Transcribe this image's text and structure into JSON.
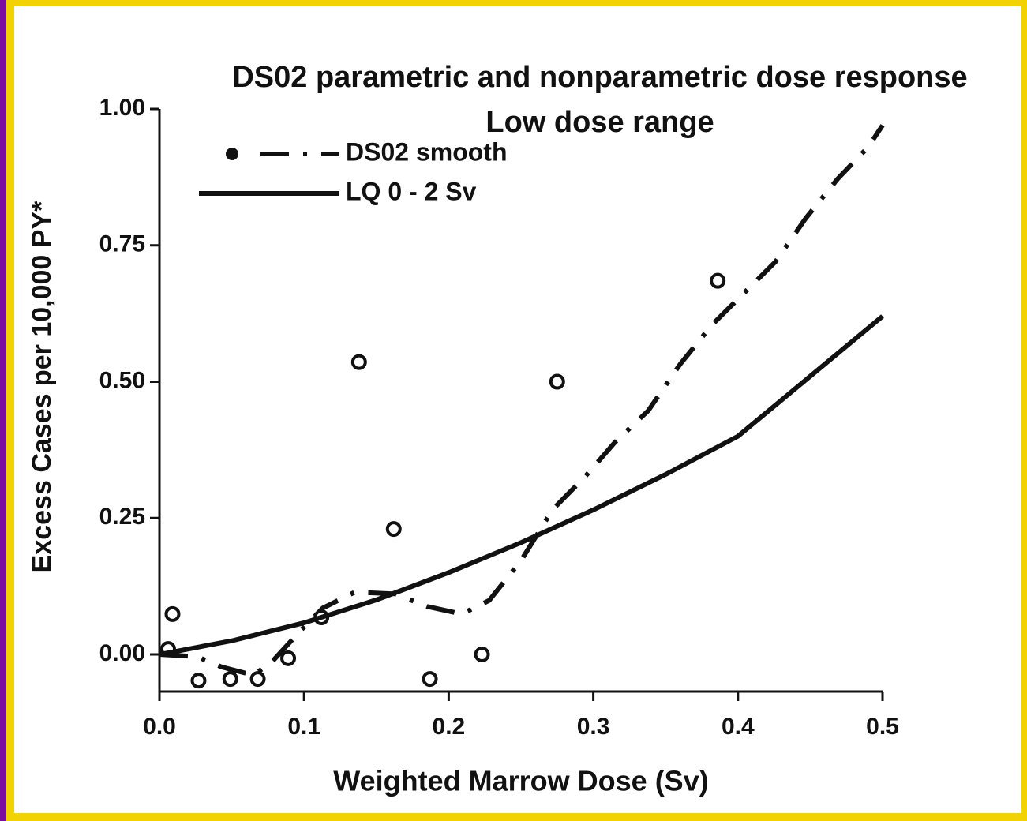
{
  "chart_data": {
    "type": "line",
    "title": "DS02 parametric and nonparametric dose response",
    "subtitle": "Low dose range",
    "x_label": "Weighted Marrow Dose (Sv)",
    "y_label": "Excess Cases per 10,000 PY*",
    "xlim": [
      0,
      0.5
    ],
    "ylim": [
      -0.068,
      1.0
    ],
    "xticks": [
      {
        "value": 0,
        "label": "0.0"
      },
      0.1,
      0.2,
      0.3,
      0.4,
      0.5
    ],
    "yticks": [
      {
        "value": 0,
        "label": "0.00"
      },
      {
        "value": 0.25,
        "label": "0.25"
      },
      {
        "value": 0.5,
        "label": "0.50"
      },
      {
        "value": 0.75,
        "label": "0.75"
      },
      {
        "value": 1.0,
        "label": "1.00"
      }
    ],
    "series": [
      {
        "name": "DS02 smooth",
        "color": "#111111",
        "style": "dashdot",
        "x": [
          0,
          0.026,
          0.043,
          0.065,
          0.078,
          0.097,
          0.113,
          0.135,
          0.163,
          0.185,
          0.209,
          0.228,
          0.25,
          0.272,
          0.294,
          0.315,
          0.338,
          0.36,
          0.382,
          0.404,
          0.426,
          0.447,
          0.469,
          0.49,
          0.5
        ],
        "values": [
          0,
          -0.004,
          -0.023,
          -0.038,
          -0.013,
          0.042,
          0.085,
          0.114,
          0.111,
          0.088,
          0.074,
          0.099,
          0.172,
          0.266,
          0.325,
          0.389,
          0.447,
          0.532,
          0.604,
          0.662,
          0.72,
          0.8,
          0.872,
          0.93,
          0.97
        ],
        "points": {
          "x": [
            0.006,
            0.009,
            0.027,
            0.049,
            0.068,
            0.089,
            0.112,
            0.138,
            0.162,
            0.187,
            0.223,
            0.275,
            0.386
          ],
          "values": [
            0.01,
            0.074,
            -0.048,
            -0.045,
            -0.045,
            -0.007,
            0.068,
            0.536,
            0.23,
            -0.045,
            0.0,
            0.5,
            0.685
          ]
        }
      },
      {
        "name": "LQ 0 - 2 Sv",
        "color": "#111111",
        "style": "solid",
        "x": [
          0,
          0.05,
          0.1,
          0.15,
          0.2,
          0.25,
          0.3,
          0.35,
          0.4,
          0.45,
          0.5
        ],
        "values": [
          0,
          0.025,
          0.058,
          0.1,
          0.15,
          0.205,
          0.265,
          0.33,
          0.4,
          0.51,
          0.62
        ]
      }
    ]
  }
}
